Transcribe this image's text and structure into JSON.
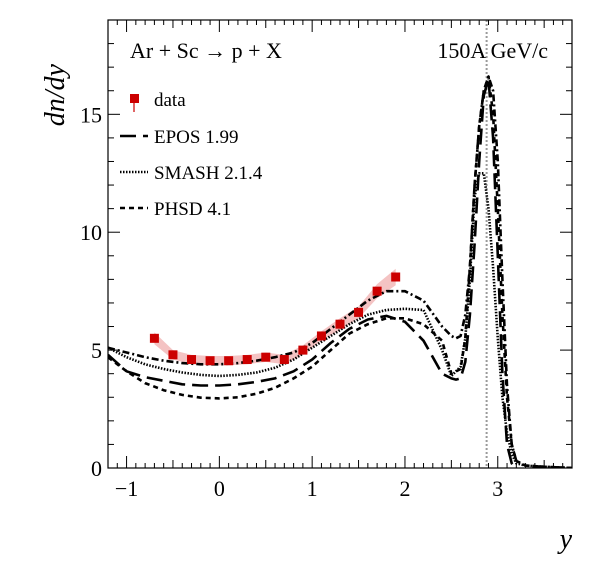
{
  "chart_data": {
    "type": "line",
    "title": "",
    "xlabel": "y",
    "ylabel": "dn/dy",
    "xlim": [
      -1.2,
      3.8
    ],
    "ylim": [
      0,
      19
    ],
    "grid": false,
    "legend_position": "top-left",
    "annotations": {
      "reaction": "Ar + Sc → p + X",
      "energy": "150A GeV/c"
    },
    "x_ticks": [
      -1,
      0,
      1,
      2,
      3
    ],
    "y_ticks": [
      0,
      5,
      10,
      15
    ],
    "beam_rapidity": 2.88,
    "data": {
      "name": "data",
      "color": "#cc0000",
      "band_color": "#f2b8b8",
      "x": [
        -0.7,
        -0.5,
        -0.3,
        -0.1,
        0.1,
        0.3,
        0.5,
        0.7,
        0.9,
        1.1,
        1.3,
        1.5,
        1.7,
        1.9
      ],
      "y": [
        5.5,
        4.8,
        4.6,
        4.55,
        4.55,
        4.6,
        4.7,
        4.6,
        5.0,
        5.6,
        6.1,
        6.6,
        7.5,
        8.1
      ],
      "err": [
        0.25,
        0.2,
        0.2,
        0.2,
        0.2,
        0.2,
        0.2,
        0.2,
        0.2,
        0.2,
        0.25,
        0.25,
        0.3,
        0.35
      ]
    },
    "series": [
      {
        "name": "EPOS 1.99",
        "style": "long-dash",
        "x": [
          -1.2,
          -1.0,
          -0.8,
          -0.6,
          -0.4,
          -0.2,
          0.0,
          0.2,
          0.4,
          0.6,
          0.8,
          1.0,
          1.2,
          1.4,
          1.6,
          1.8,
          2.0,
          2.2,
          2.3,
          2.4,
          2.5,
          2.55,
          2.6,
          2.65,
          2.7,
          2.75,
          2.8,
          2.85,
          2.9,
          2.95,
          3.0,
          3.05,
          3.1,
          3.15,
          3.2
        ],
        "y": [
          4.8,
          4.1,
          3.85,
          3.7,
          3.55,
          3.5,
          3.5,
          3.55,
          3.65,
          3.8,
          4.1,
          4.6,
          5.3,
          5.9,
          6.3,
          6.45,
          6.2,
          5.4,
          4.7,
          4.0,
          3.8,
          3.75,
          3.8,
          4.5,
          6.5,
          9.5,
          13.0,
          15.8,
          16.5,
          14.0,
          9.0,
          4.0,
          1.0,
          0.2,
          0.0
        ]
      },
      {
        "name": "SMASH 2.1.4",
        "style": "dotted",
        "x": [
          -1.2,
          -1.0,
          -0.8,
          -0.6,
          -0.4,
          -0.2,
          0.0,
          0.2,
          0.4,
          0.6,
          0.8,
          1.0,
          1.2,
          1.4,
          1.6,
          1.8,
          2.0,
          2.2,
          2.4,
          2.5,
          2.6,
          2.65,
          2.7,
          2.75,
          2.8,
          2.85,
          2.9,
          2.95,
          3.0,
          3.05,
          3.1,
          3.15,
          3.2,
          3.3,
          3.5,
          3.8
        ],
        "y": [
          5.1,
          4.7,
          4.4,
          4.2,
          4.05,
          3.95,
          3.9,
          3.95,
          4.05,
          4.25,
          4.6,
          5.1,
          5.6,
          6.1,
          6.5,
          6.7,
          6.75,
          6.7,
          5.0,
          3.9,
          4.3,
          5.5,
          8.0,
          11.5,
          12.5,
          12.5,
          11.0,
          8.5,
          5.5,
          3.0,
          1.5,
          0.6,
          0.2,
          0.1,
          0.05,
          0.0
        ]
      },
      {
        "name": "PHSD 4.1",
        "style": "dashed",
        "x": [
          -1.2,
          -1.0,
          -0.8,
          -0.6,
          -0.4,
          -0.2,
          0.0,
          0.2,
          0.4,
          0.6,
          0.8,
          1.0,
          1.2,
          1.4,
          1.6,
          1.8,
          2.0,
          2.2,
          2.4,
          2.5,
          2.6,
          2.65,
          2.7,
          2.75,
          2.8,
          2.85,
          2.9,
          2.95,
          3.0,
          3.05,
          3.1,
          3.15,
          3.2,
          3.3,
          3.5,
          3.8
        ],
        "y": [
          4.7,
          4.1,
          3.6,
          3.3,
          3.1,
          2.98,
          2.95,
          3.0,
          3.15,
          3.4,
          3.8,
          4.3,
          5.0,
          5.7,
          6.1,
          6.35,
          6.35,
          6.1,
          5.4,
          4.0,
          4.2,
          5.5,
          8.5,
          12.0,
          14.5,
          16.0,
          16.6,
          15.0,
          11.0,
          6.5,
          3.0,
          1.0,
          0.3,
          0.1,
          0.05,
          0.0
        ]
      },
      {
        "name": "",
        "style": "dash-dot",
        "x": [
          -1.2,
          -1.0,
          -0.8,
          -0.6,
          -0.4,
          -0.2,
          0.0,
          0.2,
          0.4,
          0.6,
          0.8,
          1.0,
          1.2,
          1.4,
          1.6,
          1.8,
          2.0,
          2.2,
          2.4,
          2.5,
          2.55,
          2.6,
          2.65,
          2.7,
          2.75,
          2.8,
          2.85,
          2.9,
          2.95,
          3.0,
          3.05,
          3.1,
          3.15,
          3.2,
          3.3,
          3.5,
          3.8
        ],
        "y": [
          5.1,
          4.9,
          4.7,
          4.55,
          4.45,
          4.4,
          4.4,
          4.45,
          4.55,
          4.7,
          4.9,
          5.3,
          5.9,
          6.5,
          7.1,
          7.5,
          7.5,
          7.1,
          6.0,
          5.6,
          5.5,
          5.6,
          6.5,
          8.5,
          12.0,
          14.5,
          16.0,
          16.6,
          16.0,
          13.0,
          8.0,
          3.5,
          1.0,
          0.3,
          0.1,
          0.05,
          0.0
        ]
      }
    ]
  }
}
